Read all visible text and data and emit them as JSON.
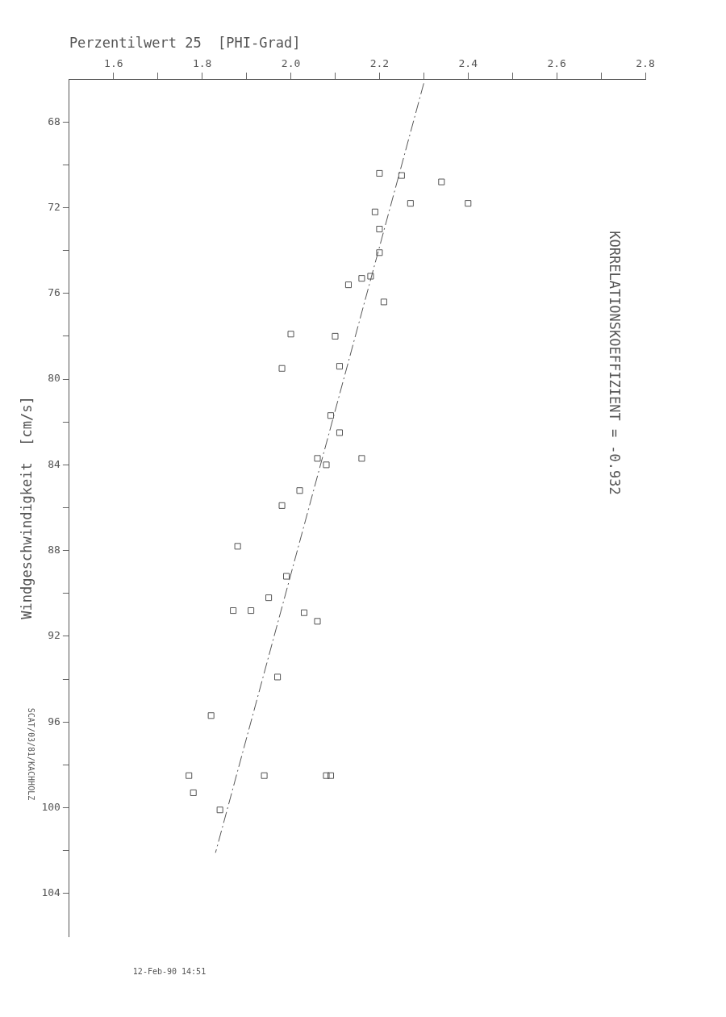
{
  "chart_data": {
    "type": "scatter",
    "xlabel": "Perzentilwert 25  [PHI-Grad]",
    "ylabel": "Windgeschwindigkeit  [cm/s]",
    "xlim": [
      1.5,
      2.8
    ],
    "ylim": [
      106,
      66
    ],
    "xticks": [
      1.6,
      {
        "value": 1.7,
        "label": null
      },
      1.8,
      {
        "value": 1.9,
        "label": null
      },
      {
        "value": 2.0,
        "label": "2.0"
      },
      {
        "value": 2.1,
        "label": null
      },
      2.2,
      {
        "value": 2.3,
        "label": null
      },
      2.4,
      {
        "value": 2.5,
        "label": null
      },
      2.6,
      {
        "value": 2.7,
        "label": null
      },
      2.8
    ],
    "yticks": [
      68,
      {
        "value": 70,
        "label": null
      },
      72,
      {
        "value": 74,
        "label": null
      },
      76,
      {
        "value": 78,
        "label": null
      },
      80,
      {
        "value": 82,
        "label": null
      },
      84,
      {
        "value": 86,
        "label": null
      },
      88,
      {
        "value": 90,
        "label": null
      },
      92,
      {
        "value": 94,
        "label": null
      },
      96,
      {
        "value": 98,
        "label": null
      },
      100,
      {
        "value": 102,
        "label": null
      },
      104
    ],
    "grid": false,
    "legend": false,
    "marker": "square",
    "series": [
      {
        "color": "#555555",
        "x": [
          2.2,
          2.25,
          2.34,
          2.4,
          2.27,
          2.19,
          2.2,
          2.2,
          2.18,
          2.16,
          2.13,
          2.21,
          2.0,
          2.1,
          1.98,
          2.11,
          2.09,
          2.11,
          2.06,
          2.16,
          2.08,
          2.02,
          1.98,
          1.88,
          1.99,
          1.95,
          1.87,
          1.91,
          2.03,
          2.06,
          1.97,
          1.82,
          1.77,
          1.94,
          2.08,
          2.09,
          1.78,
          1.84
        ],
        "values": [
          70.4,
          70.5,
          70.8,
          71.8,
          71.8,
          72.2,
          73.0,
          74.1,
          75.2,
          75.3,
          75.6,
          76.4,
          77.9,
          78.0,
          79.5,
          79.4,
          81.7,
          82.5,
          83.7,
          83.7,
          84.0,
          85.2,
          85.9,
          87.8,
          89.2,
          90.2,
          90.8,
          90.8,
          90.9,
          91.3,
          93.9,
          95.7,
          98.5,
          98.5,
          98.5,
          98.5,
          99.3,
          100.1
        ]
      },
      {
        "type": "line",
        "color": "#555555",
        "line_style": "dashed",
        "marker": "none",
        "x": [
          2.3,
          1.83
        ],
        "values": [
          66.2,
          102.1
        ]
      }
    ],
    "annotations": [
      "KORRELATIONSKOEFFIZIENT = -0.932",
      "SCAT/03/81/KACHHOLZ",
      "12-Feb-90 14:51"
    ]
  }
}
